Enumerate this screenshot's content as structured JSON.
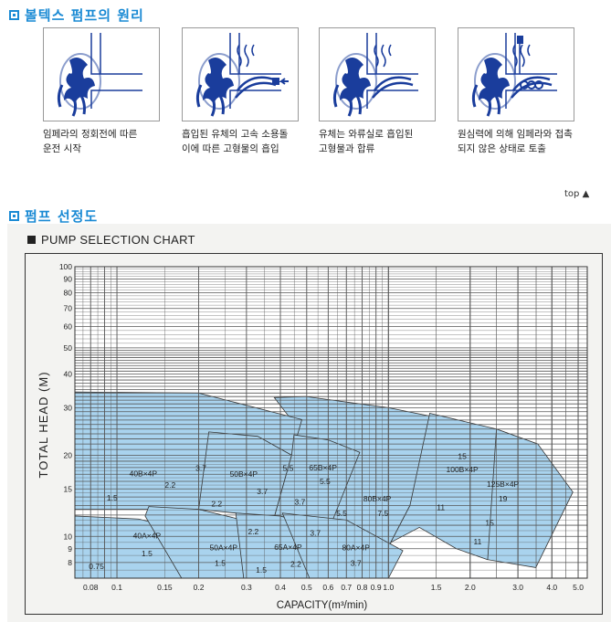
{
  "section1": {
    "title": "볼텍스 펌프의 원리",
    "steps": [
      {
        "line1": "임페라의 정회전에 따른",
        "line2": "운전 시작"
      },
      {
        "line1": "흡입된 유체의 고속 소용돌",
        "line2": "이에 따른 고형물의 흡입"
      },
      {
        "line1": "유체는 와류실로 흡입된",
        "line2": "고형물과 합류"
      },
      {
        "line1": "원심력에 의해 임페라와 접촉",
        "line2": "되지 않은 상태로 토출"
      }
    ]
  },
  "top_link": "top ▲",
  "section2": {
    "title": "펌프 선정도"
  },
  "colors": {
    "heading": "#1a8ad4",
    "region_fill": "#a9d3ee",
    "grid": "#555555",
    "illustration": "#1a3d9c"
  },
  "chart_data": {
    "type": "area",
    "title": "PUMP SELECTION CHART",
    "xlabel": "CAPACITY(m³/min)",
    "ylabel": "TOTAL HEAD (M)",
    "x_scale": "log",
    "y_scale": "log",
    "xlim": [
      0.07,
      5.4
    ],
    "ylim": [
      7,
      100
    ],
    "grid": true,
    "x_ticks": [
      {
        "v": 0.08,
        "label": "0.08"
      },
      {
        "v": 0.1,
        "label": "0.1"
      },
      {
        "v": 0.15,
        "label": "0.15"
      },
      {
        "v": 0.2,
        "label": "0.2"
      },
      {
        "v": 0.3,
        "label": "0.3"
      },
      {
        "v": 0.4,
        "label": "0.4"
      },
      {
        "v": 0.5,
        "label": "0.5"
      },
      {
        "v": 0.6,
        "label": "0.6"
      },
      {
        "v": 0.7,
        "label": "0.7"
      },
      {
        "v": 0.8,
        "label": "0.8"
      },
      {
        "v": 0.9,
        "label": "0.9"
      },
      {
        "v": 1.0,
        "label": "1.0"
      },
      {
        "v": 1.5,
        "label": "1.5"
      },
      {
        "v": 2.0,
        "label": "2.0"
      },
      {
        "v": 3.0,
        "label": "3.0"
      },
      {
        "v": 4.0,
        "label": "4.0"
      },
      {
        "v": 5.0,
        "label": "5.0"
      }
    ],
    "y_ticks": [
      {
        "v": 8,
        "label": "8"
      },
      {
        "v": 9,
        "label": "9"
      },
      {
        "v": 10,
        "label": "10"
      },
      {
        "v": 15,
        "label": "15"
      },
      {
        "v": 20,
        "label": "20"
      },
      {
        "v": 30,
        "label": "30"
      },
      {
        "v": 40,
        "label": "40"
      },
      {
        "v": 50,
        "label": "50"
      },
      {
        "v": 60,
        "label": "60"
      },
      {
        "v": 70,
        "label": "70"
      },
      {
        "v": 80,
        "label": "80"
      },
      {
        "v": 90,
        "label": "90"
      },
      {
        "v": 100,
        "label": "100"
      }
    ],
    "regions": [
      {
        "model": "80B×4P",
        "points": [
          [
            0.38,
            32.7
          ],
          [
            0.495,
            33
          ],
          [
            1.0,
            30
          ],
          [
            1.62,
            27.2
          ],
          [
            1.2,
            13
          ],
          [
            1.02,
            9.5
          ],
          [
            1.0,
            7
          ],
          [
            0.512,
            7
          ],
          [
            0.45,
            23.8
          ],
          [
            0.44,
            27
          ]
        ]
      },
      {
        "model": "100B×4P",
        "points": [
          [
            1.42,
            28.6
          ],
          [
            2.5,
            25
          ],
          [
            3.55,
            22
          ],
          [
            2.32,
            8.2
          ],
          [
            1.78,
            9
          ],
          [
            1.3,
            10.8
          ],
          [
            1.02,
            9.5
          ],
          [
            1.2,
            13
          ]
        ]
      },
      {
        "model": "125B×4P",
        "points": [
          [
            2.5,
            25
          ],
          [
            3.55,
            22
          ],
          [
            4.78,
            14.6
          ],
          [
            3.49,
            7.66
          ],
          [
            2.32,
            8.2
          ]
        ]
      },
      {
        "model": "40B×4P",
        "points": [
          [
            0.07,
            34.3
          ],
          [
            0.2,
            34
          ],
          [
            0.48,
            27.1
          ],
          [
            0.44,
            20
          ],
          [
            0.2,
            12.6
          ],
          [
            0.07,
            12.6
          ]
        ]
      },
      {
        "model": "50B×4P",
        "points": [
          [
            0.218,
            24.4
          ],
          [
            0.33,
            23.5
          ],
          [
            0.44,
            20
          ],
          [
            0.38,
            11.8
          ],
          [
            0.2,
            12.6
          ]
        ]
      },
      {
        "model": "65B×4P",
        "points": [
          [
            0.449,
            23.8
          ],
          [
            0.6,
            22.8
          ],
          [
            0.784,
            20.5
          ],
          [
            0.512,
            7
          ],
          [
            0.38,
            11.8
          ],
          [
            0.44,
            20
          ]
        ]
      },
      {
        "model": "40A×4P",
        "points": [
          [
            0.07,
            11.9
          ],
          [
            0.12,
            11.6
          ],
          [
            0.207,
            10.2
          ],
          [
            0.173,
            7
          ],
          [
            0.07,
            7
          ]
        ]
      },
      {
        "model": "50A×4P",
        "points": [
          [
            0.131,
            12.9
          ],
          [
            0.2,
            12.6
          ],
          [
            0.362,
            10.9
          ],
          [
            0.293,
            7
          ],
          [
            0.173,
            7
          ],
          [
            0.127,
            11.9
          ]
        ]
      },
      {
        "model": "65A×4P",
        "points": [
          [
            0.274,
            12.2
          ],
          [
            0.4,
            11.9
          ],
          [
            0.613,
            10.4
          ],
          [
            0.512,
            7
          ],
          [
            0.293,
            7
          ]
        ]
      },
      {
        "model": "80A×4P",
        "points": [
          [
            0.407,
            12.2
          ],
          [
            0.7,
            11.5
          ],
          [
            1.13,
            8.85
          ],
          [
            1.0,
            7
          ],
          [
            0.512,
            7
          ]
        ]
      }
    ],
    "annotations": [
      {
        "text": "40B×4P",
        "x": 0.125,
        "y": 17.1
      },
      {
        "text": "3.7",
        "x": 0.204,
        "y": 17.9
      },
      {
        "text": "50B×4P",
        "x": 0.293,
        "y": 17.0
      },
      {
        "text": "5.5",
        "x": 0.427,
        "y": 17.9
      },
      {
        "text": "65B×4P",
        "x": 0.574,
        "y": 17.95
      },
      {
        "text": "5.5",
        "x": 0.584,
        "y": 16.0
      },
      {
        "text": "2.2",
        "x": 0.157,
        "y": 15.5
      },
      {
        "text": "3.7",
        "x": 0.343,
        "y": 14.7
      },
      {
        "text": "1.5",
        "x": 0.096,
        "y": 13.9
      },
      {
        "text": "2.2",
        "x": 0.233,
        "y": 13.2
      },
      {
        "text": "3.7",
        "x": 0.472,
        "y": 13.4
      },
      {
        "text": "80B×4P",
        "x": 0.91,
        "y": 13.8
      },
      {
        "text": "7.5",
        "x": 0.955,
        "y": 12.2
      },
      {
        "text": "5.5",
        "x": 0.672,
        "y": 12.2
      },
      {
        "text": "15",
        "x": 1.87,
        "y": 19.8
      },
      {
        "text": "100B×4P",
        "x": 1.87,
        "y": 17.7
      },
      {
        "text": "11",
        "x": 1.56,
        "y": 12.8
      },
      {
        "text": "125B×4P",
        "x": 2.64,
        "y": 15.6
      },
      {
        "text": "19",
        "x": 2.64,
        "y": 13.8
      },
      {
        "text": "15",
        "x": 2.36,
        "y": 11.2
      },
      {
        "text": "11",
        "x": 2.13,
        "y": 9.58
      },
      {
        "text": "2.2",
        "x": 0.318,
        "y": 10.4
      },
      {
        "text": "3.7",
        "x": 0.538,
        "y": 10.3
      },
      {
        "text": "40A×4P",
        "x": 0.129,
        "y": 10.05
      },
      {
        "text": "1.5",
        "x": 0.129,
        "y": 8.63
      },
      {
        "text": "50A×4P",
        "x": 0.247,
        "y": 9.1
      },
      {
        "text": "1.5",
        "x": 0.24,
        "y": 7.97
      },
      {
        "text": "65A×4P",
        "x": 0.427,
        "y": 9.14
      },
      {
        "text": "2.2",
        "x": 0.456,
        "y": 7.9
      },
      {
        "text": "1.5",
        "x": 0.34,
        "y": 7.5
      },
      {
        "text": "80A×4P",
        "x": 0.759,
        "y": 9.1
      },
      {
        "text": "3.7",
        "x": 0.759,
        "y": 7.97
      },
      {
        "text": "0.75",
        "x": 0.084,
        "y": 7.76
      }
    ]
  }
}
